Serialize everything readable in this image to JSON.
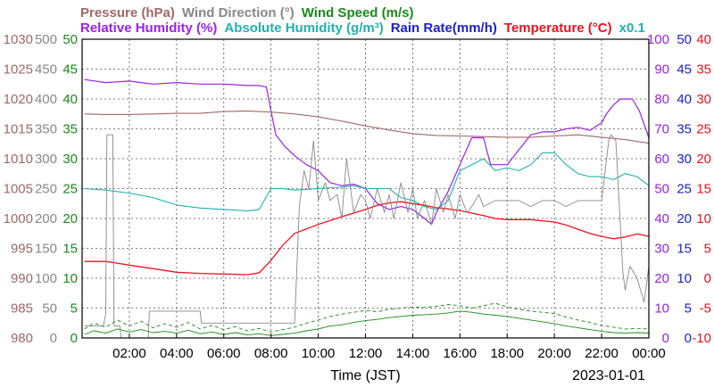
{
  "chart_data": {
    "type": "line",
    "date_label": "2023-01-01",
    "xlabel": "Time (JST)",
    "x_range": [
      0,
      24
    ],
    "x_ticks": [
      {
        "h": 2,
        "label": "02:00"
      },
      {
        "h": 4,
        "label": "04:00"
      },
      {
        "h": 6,
        "label": "06:00"
      },
      {
        "h": 8,
        "label": "08:00"
      },
      {
        "h": 10,
        "label": "10:00"
      },
      {
        "h": 12,
        "label": "12:00"
      },
      {
        "h": 14,
        "label": "14:00"
      },
      {
        "h": 16,
        "label": "16:00"
      },
      {
        "h": 18,
        "label": "18:00"
      },
      {
        "h": 20,
        "label": "20:00"
      },
      {
        "h": 22,
        "label": "22:00"
      },
      {
        "h": 24,
        "label": "00:00"
      }
    ],
    "grid": true,
    "legend": {
      "row1": [
        {
          "text": "Pressure (hPa)",
          "color": "#a06868"
        },
        {
          "text": "Wind Direction (°)",
          "color": "#888888"
        },
        {
          "text": "Wind Speed (m/s)",
          "color": "#1a8a1a"
        }
      ],
      "row2": [
        {
          "text": "Relative Humidity (%)",
          "color": "#9a22e6"
        },
        {
          "text": "Absolute Humidity (g/m³)",
          "color": "#22b0b0"
        },
        {
          "text": "Rain Rate(mm/h)",
          "color": "#1e20d0"
        },
        {
          "text": "Temperature (°C)",
          "color": "#ee1122"
        },
        {
          "text": "x0.1",
          "color": "#22b0b0"
        }
      ]
    },
    "axes": [
      {
        "id": "pressure",
        "color": "#a06868",
        "range": [
          980,
          1030
        ],
        "labels": [
          "980",
          "985",
          "990",
          "995",
          "1000",
          "1005",
          "1010",
          "1015",
          "1020",
          "1025",
          "1030"
        ]
      },
      {
        "id": "wind_dir",
        "color": "#888888",
        "range": [
          0,
          500
        ],
        "labels": [
          "0",
          "50",
          "100",
          "150",
          "200",
          "250",
          "300",
          "350",
          "400",
          "450",
          "500"
        ]
      },
      {
        "id": "wind_speed",
        "color": "#1a8a1a",
        "range": [
          0,
          50
        ],
        "labels": [
          "0",
          "5",
          "10",
          "15",
          "20",
          "25",
          "30",
          "35",
          "40",
          "45",
          "50"
        ]
      },
      {
        "id": "rh",
        "color": "#9a22e6",
        "range": [
          0,
          100
        ],
        "labels": [
          "0",
          "10",
          "20",
          "30",
          "40",
          "50",
          "60",
          "70",
          "80",
          "90",
          "100"
        ]
      },
      {
        "id": "rain",
        "color": "#1e20d0",
        "range": [
          0,
          50
        ],
        "labels": [
          "0",
          "5",
          "10",
          "15",
          "20",
          "25",
          "30",
          "35",
          "40",
          "45",
          "50"
        ]
      },
      {
        "id": "temp",
        "color": "#ee1122",
        "range": [
          -10,
          40
        ],
        "labels": [
          "-10",
          "-5",
          "0",
          "5",
          "10",
          "15",
          "20",
          "25",
          "30",
          "35",
          "40"
        ]
      }
    ],
    "series": [
      {
        "name": "Relative Humidity",
        "axis": "rh",
        "color": "#9a22e6",
        "width": 1.2,
        "x": [
          0.1,
          1,
          2,
          2.5,
          3,
          4,
          5,
          6,
          7,
          7.5,
          7.8,
          8,
          8.2,
          8.6,
          9,
          9.5,
          10,
          10.5,
          11,
          11.5,
          12,
          12.5,
          13,
          13.5,
          14,
          14.5,
          14.8,
          15,
          15.5,
          16,
          16.5,
          17,
          17.3,
          17.6,
          18,
          18.5,
          19,
          19.5,
          20,
          20.5,
          21,
          21.5,
          22,
          22.2,
          22.5,
          22.8,
          23,
          23.3,
          23.6,
          24
        ],
        "y": [
          86.5,
          85.5,
          86,
          85.5,
          85,
          85.5,
          85,
          85,
          84.5,
          84.5,
          84,
          76,
          68,
          64,
          61,
          58,
          56,
          52,
          51,
          51.5,
          50,
          45,
          43,
          44,
          43,
          40,
          38,
          42,
          49,
          58,
          67,
          67,
          58,
          58,
          58,
          63,
          68,
          69,
          69,
          70,
          70.5,
          69.5,
          72,
          75,
          78,
          80,
          80,
          80,
          76,
          67
        ]
      },
      {
        "name": "Absolute Humidity",
        "axis": "rh",
        "color": "#22b0b0",
        "width": 1.1,
        "x": [
          0.1,
          1,
          2,
          3,
          4,
          5,
          6,
          7,
          7.5,
          8,
          8.5,
          9,
          10,
          11,
          11.5,
          12,
          12.5,
          13,
          13.5,
          14,
          14.5,
          15,
          15.5,
          16,
          16.5,
          17,
          17.5,
          18,
          18.5,
          19,
          19.5,
          20,
          20.5,
          21,
          21.5,
          22,
          22.5,
          23,
          23.5,
          24
        ],
        "y": [
          50,
          49.5,
          48.5,
          47,
          44.5,
          43.5,
          43,
          42.5,
          43,
          50,
          50,
          49.5,
          50,
          50.5,
          51,
          50,
          50,
          50,
          47,
          46,
          44,
          43,
          46,
          56,
          58,
          60,
          56,
          57,
          56,
          58,
          62,
          62,
          58,
          55,
          54,
          54,
          53,
          55,
          54,
          51
        ]
      },
      {
        "name": "Pressure",
        "axis": "pressure",
        "color": "#a06868",
        "width": 1.1,
        "x": [
          0.1,
          1,
          2,
          3,
          4,
          5,
          6,
          7,
          7.5,
          8,
          9,
          10,
          11,
          12,
          13,
          14,
          15,
          16,
          17,
          18,
          19,
          20,
          21,
          22,
          23,
          24
        ],
        "y": [
          1017.5,
          1017.4,
          1017.4,
          1017.5,
          1017.6,
          1017.6,
          1017.9,
          1018,
          1017.9,
          1017.8,
          1017.5,
          1017,
          1016.3,
          1015.5,
          1014.8,
          1014.2,
          1013.9,
          1013.8,
          1013.7,
          1013.6,
          1013.6,
          1013.8,
          1014,
          1013.6,
          1013.2,
          1012.6
        ]
      },
      {
        "name": "Temperature",
        "axis": "temp",
        "color": "#ee1122",
        "width": 1.3,
        "x": [
          0.1,
          1,
          2,
          3,
          4,
          5,
          6,
          7,
          7.5,
          8,
          8.5,
          9,
          10,
          11,
          11.5,
          12,
          12.5,
          13,
          13.5,
          14,
          14.5,
          15,
          15.5,
          16,
          16.5,
          17,
          17.5,
          18,
          19,
          20,
          20.5,
          21,
          21.5,
          22,
          22.5,
          23,
          23.5,
          24
        ],
        "y": [
          2.8,
          2.8,
          2.2,
          1.6,
          1.0,
          0.8,
          0.7,
          0.6,
          0.9,
          3,
          5.5,
          7.5,
          9,
          10.3,
          10.9,
          11.5,
          12.2,
          12.6,
          12.8,
          12.5,
          12.2,
          11.8,
          11.6,
          11.3,
          10.9,
          10.5,
          10,
          9.8,
          9.8,
          9.4,
          8.9,
          8.2,
          7.5,
          7.0,
          6.6,
          6.9,
          7.4,
          7.0
        ]
      },
      {
        "name": "Wind Direction",
        "axis": "wind_dir",
        "color": "#888888",
        "width": 0.9,
        "x": [
          0.1,
          0.9,
          1,
          1.05,
          1.3,
          1.35,
          1.6,
          1.65,
          2.8,
          2.85,
          5,
          5.05,
          9,
          9,
          9.2,
          9.4,
          9.6,
          9.8,
          10,
          10.1,
          10.3,
          10.5,
          10.8,
          11,
          11.2,
          11.5,
          11.8,
          12,
          12.2,
          12.5,
          12.8,
          13,
          13.2,
          13.5,
          13.8,
          14,
          14.2,
          14.5,
          14.8,
          15,
          15.3,
          15.5,
          15.8,
          16,
          16.3,
          16.5,
          16.8,
          17,
          17.5,
          18,
          18.5,
          19,
          19.5,
          20,
          20.5,
          21,
          21.5,
          22,
          22.3,
          22.4,
          22.6,
          22.9,
          23,
          23.2,
          23.5,
          23.8,
          24
        ],
        "y": [
          20,
          20,
          40,
          340,
          340,
          20,
          20,
          0,
          0,
          45,
          45,
          25,
          25,
          25,
          220,
          280,
          250,
          330,
          230,
          240,
          260,
          230,
          240,
          200,
          300,
          210,
          240,
          230,
          200,
          250,
          210,
          240,
          200,
          260,
          210,
          250,
          200,
          230,
          190,
          250,
          210,
          240,
          200,
          240,
          210,
          220,
          240,
          220,
          230,
          230,
          230,
          220,
          230,
          230,
          220,
          230,
          230,
          230,
          330,
          340,
          330,
          110,
          80,
          120,
          100,
          60,
          120
        ]
      },
      {
        "name": "Wind Speed",
        "axis": "wind_speed",
        "color": "#1a8a1a",
        "width": 0.9,
        "x": [
          0.1,
          0.5,
          1,
          1.5,
          2,
          2.5,
          3,
          3.5,
          4,
          4.5,
          5,
          5.5,
          6,
          6.5,
          7,
          7.5,
          8,
          8.5,
          9,
          9.5,
          10,
          10.5,
          11,
          11.5,
          12,
          12.5,
          13,
          13.5,
          14,
          14.5,
          15,
          15.5,
          16,
          16.5,
          17,
          17.5,
          18,
          18.5,
          19,
          19.5,
          20,
          20.5,
          21,
          21.5,
          22,
          22.5,
          23,
          23.5,
          24
        ],
        "y": [
          0.6,
          1.2,
          0.8,
          1.5,
          1,
          1.4,
          0.9,
          1.1,
          0.8,
          1.3,
          0.7,
          1,
          0.6,
          0.9,
          0.5,
          0.7,
          0.4,
          0.6,
          0.8,
          1.2,
          1.5,
          2,
          2.2,
          2.6,
          2.9,
          3.1,
          3.4,
          3.6,
          3.8,
          3.9,
          4,
          4.2,
          4.5,
          4.3,
          4,
          3.8,
          3.6,
          3.3,
          3,
          2.7,
          2.4,
          2,
          1.7,
          1.4,
          1.1,
          0.9,
          0.8,
          0.9,
          0.8
        ]
      },
      {
        "name": "Wind Speed gust",
        "axis": "wind_speed",
        "color": "#1a8a1a",
        "width": 0.9,
        "dashed": true,
        "x": [
          0.1,
          0.5,
          1,
          1.5,
          2,
          2.5,
          3,
          3.5,
          4,
          4.5,
          5,
          5.5,
          6,
          6.5,
          7,
          7.5,
          8,
          8.5,
          9,
          9.5,
          10,
          10.5,
          11,
          11.5,
          12,
          12.5,
          13,
          13.5,
          14,
          14.5,
          15,
          15.5,
          16,
          16.5,
          17,
          17.5,
          18,
          18.5,
          19,
          19.5,
          20,
          20.5,
          21,
          21.5,
          22,
          22.5,
          23,
          23.5,
          24
        ],
        "y": [
          1.5,
          2.5,
          1.8,
          3,
          2,
          2.8,
          1.7,
          2.4,
          1.8,
          2.6,
          1.5,
          2.1,
          1.4,
          1.9,
          1.2,
          1.6,
          1,
          1.4,
          1.8,
          2.5,
          3,
          3.6,
          4,
          4.3,
          4.6,
          4.4,
          4.8,
          5,
          5.2,
          5.1,
          5.3,
          5.6,
          5.4,
          5,
          5.4,
          5.8,
          5.2,
          4.8,
          4.5,
          4.3,
          4.1,
          3.5,
          3,
          2.6,
          2.1,
          1.8,
          1.5,
          1.6,
          1.5
        ]
      }
    ]
  }
}
